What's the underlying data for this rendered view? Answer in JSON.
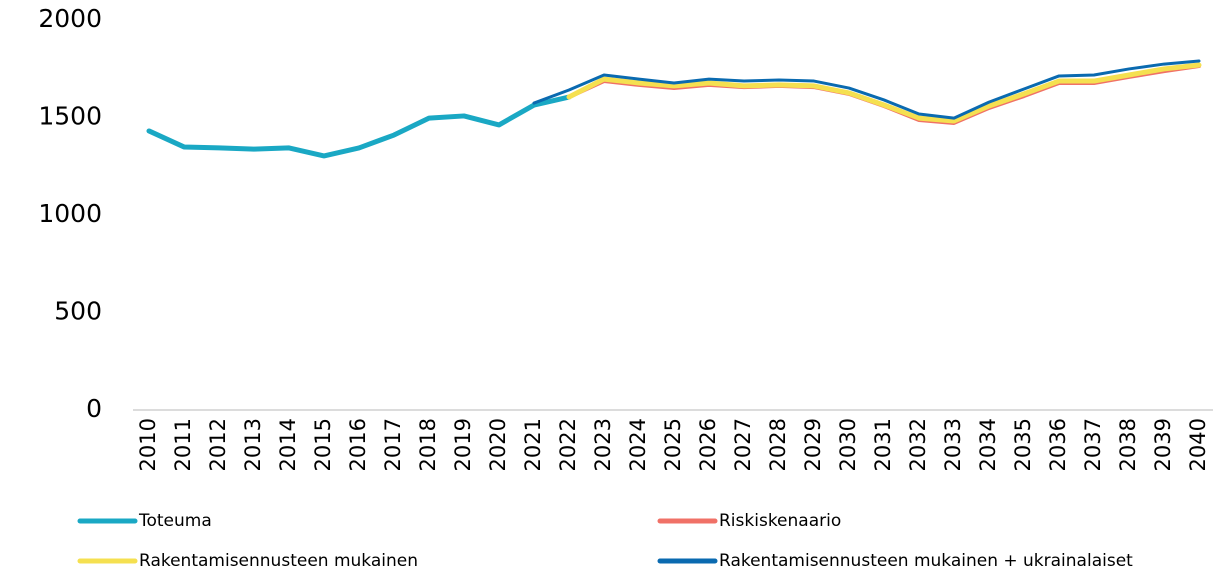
{
  "chart_data": {
    "type": "line",
    "categories": [
      "2010",
      "2011",
      "2012",
      "2013",
      "2014",
      "2015",
      "2016",
      "2017",
      "2018",
      "2019",
      "2020",
      "2021",
      "2022",
      "2023",
      "2024",
      "2025",
      "2026",
      "2027",
      "2028",
      "2029",
      "2030",
      "2031",
      "2032",
      "2033",
      "2034",
      "2035",
      "2036",
      "2037",
      "2038",
      "2039",
      "2040"
    ],
    "series": [
      {
        "name": "Toteuma",
        "color": "#1aa8c4",
        "values": [
          1431,
          1349,
          1344,
          1338,
          1344,
          1303,
          1344,
          1410,
          1497,
          1508,
          1462,
          1564,
          1605,
          null,
          null,
          null,
          null,
          null,
          null,
          null,
          null,
          null,
          null,
          null,
          null,
          null,
          null,
          null,
          null,
          null,
          null
        ]
      },
      {
        "name": "Riskiskenaario",
        "color": "#f07167",
        "values": [
          null,
          null,
          null,
          null,
          null,
          null,
          null,
          null,
          null,
          null,
          null,
          null,
          1605,
          1687,
          1667,
          1651,
          1667,
          1656,
          1662,
          1656,
          1621,
          1559,
          1487,
          1472,
          1549,
          1610,
          1677,
          1677,
          1708,
          1738,
          1764
        ]
      },
      {
        "name": "Rakentamisennusteen mukainen",
        "color": "#f5e050",
        "values": [
          null,
          null,
          null,
          null,
          null,
          null,
          null,
          null,
          null,
          null,
          null,
          null,
          1605,
          1697,
          1677,
          1662,
          1677,
          1662,
          1667,
          1662,
          1626,
          1564,
          1497,
          1482,
          1559,
          1621,
          1687,
          1687,
          1718,
          1749,
          1769
        ]
      },
      {
        "name": "Rakentamisennusteen mukainen + ukrainalaiset",
        "color": "#0a6ab0",
        "values": [
          null,
          null,
          null,
          null,
          null,
          null,
          null,
          null,
          null,
          null,
          null,
          1574,
          1641,
          1718,
          1697,
          1677,
          1697,
          1687,
          1692,
          1687,
          1651,
          1590,
          1518,
          1497,
          1579,
          1646,
          1713,
          1718,
          1749,
          1774,
          1790
        ]
      }
    ],
    "ylim": [
      0,
      2000
    ],
    "yticks": [
      0,
      500,
      1000,
      1500,
      2000
    ],
    "grid": false,
    "legend": "bottom"
  }
}
